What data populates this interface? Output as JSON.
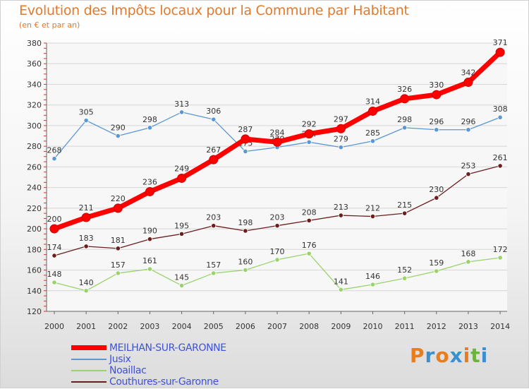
{
  "title": "Evolution des Impôts locaux pour la Commune par Habitant",
  "subtitle": "(en € et par an)",
  "logo": {
    "text": "Proxiti",
    "letter_colors": [
      "#e87d1e",
      "#3a8fd0",
      "#e87d1e",
      "#3a8fd0",
      "#e87d1e",
      "#6cb33f",
      "#3a8fd0"
    ]
  },
  "chart_data": {
    "type": "line",
    "title": "Evolution des Impôts locaux pour la Commune par Habitant",
    "subtitle": "(en € et par an)",
    "xlabel": "",
    "ylabel": "",
    "x": [
      "2000",
      "2001",
      "2002",
      "2003",
      "2004",
      "2005",
      "2006",
      "2007",
      "2008",
      "2009",
      "2010",
      "2011",
      "2012",
      "2013",
      "2014"
    ],
    "ylim": [
      120,
      380
    ],
    "yticks": [
      120,
      140,
      160,
      180,
      200,
      220,
      240,
      260,
      280,
      300,
      320,
      340,
      360,
      380
    ],
    "grid": "horizontal",
    "legend_position": "bottom-left",
    "series": [
      {
        "name": "MEILHAN-SUR-GARONNE",
        "color": "#ff0000",
        "weight": "bold",
        "values": [
          200,
          211,
          220,
          236,
          249,
          267,
          287,
          284,
          292,
          297,
          314,
          326,
          330,
          342,
          371
        ]
      },
      {
        "name": "Jusix",
        "color": "#5a97d4",
        "weight": "thin",
        "values": [
          268,
          305,
          290,
          298,
          313,
          306,
          275,
          279,
          284,
          279,
          285,
          298,
          296,
          296,
          308
        ]
      },
      {
        "name": "Noaillac",
        "color": "#9ad36c",
        "weight": "thin",
        "values": [
          148,
          140,
          157,
          161,
          145,
          157,
          160,
          170,
          176,
          141,
          146,
          152,
          159,
          168,
          172
        ]
      },
      {
        "name": "Couthures-sur-Garonne",
        "color": "#6b1e1e",
        "weight": "thin",
        "values": [
          174,
          183,
          181,
          190,
          195,
          203,
          198,
          203,
          208,
          213,
          212,
          215,
          230,
          253,
          261
        ]
      }
    ]
  }
}
